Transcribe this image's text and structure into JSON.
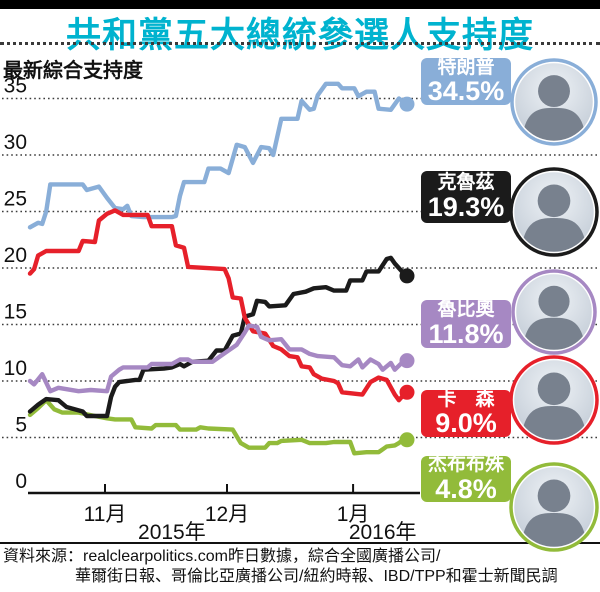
{
  "page": {
    "title": "共和黨五大總統參選人支持度",
    "title_color": "#00b3cf"
  },
  "chart": {
    "y_axis_label": "最新綜合支持度",
    "y_ticks": [
      35,
      30,
      25,
      20,
      15,
      10,
      5,
      0
    ]
  },
  "chart_data": {
    "type": "line",
    "title": "共和黨五大總統參選人支持度",
    "ylabel": "最新綜合支持度",
    "ylim": [
      0,
      35
    ],
    "grid": "horizontal-dotted",
    "legend_position": "right-cards",
    "x_unit": "days (chart spans mid-Oct 2015 to mid-Jan 2016)",
    "x_range_days": [
      0,
      93
    ],
    "x_ticks": [
      {
        "label": "11月",
        "day": 18.5
      },
      {
        "label": "12月",
        "day": 48.6
      },
      {
        "label": "1月",
        "day": 79.7
      }
    ],
    "year_labels": [
      {
        "label": "2015年",
        "day": 35
      },
      {
        "label": "2016年",
        "day": 87
      }
    ],
    "series": [
      {
        "name": "特朗普",
        "slug": "trump",
        "color": "#89aed8",
        "end_label": "34.5%",
        "end_value": 34.5,
        "points": [
          [
            0,
            23.6
          ],
          [
            2,
            24.0
          ],
          [
            3,
            23.9
          ],
          [
            4,
            25.0
          ],
          [
            5,
            27.4
          ],
          [
            13,
            27.4
          ],
          [
            14,
            26.9
          ],
          [
            17,
            27.2
          ],
          [
            19,
            26.2
          ],
          [
            21,
            25.3
          ],
          [
            23,
            25.2
          ],
          [
            24,
            25.5
          ],
          [
            25,
            24.6
          ],
          [
            28,
            24.5
          ],
          [
            35,
            24.5
          ],
          [
            36,
            24.6
          ],
          [
            37,
            26.4
          ],
          [
            38,
            27.6
          ],
          [
            43,
            27.6
          ],
          [
            44,
            28.8
          ],
          [
            47,
            28.8
          ],
          [
            49,
            28.4
          ],
          [
            51,
            30.9
          ],
          [
            53,
            30.7
          ],
          [
            55,
            29.3
          ],
          [
            57,
            30.7
          ],
          [
            59,
            30.6
          ],
          [
            60,
            30.0
          ],
          [
            62,
            33.2
          ],
          [
            66,
            33.2
          ],
          [
            67,
            34.8
          ],
          [
            69,
            34.0
          ],
          [
            70,
            34.1
          ],
          [
            71,
            35.3
          ],
          [
            73,
            36.3
          ],
          [
            76,
            36.3
          ],
          [
            77,
            35.9
          ],
          [
            80,
            35.9
          ],
          [
            81,
            35.2
          ],
          [
            83,
            35.6
          ],
          [
            85,
            35.6
          ],
          [
            86,
            34.1
          ],
          [
            89,
            34.0
          ],
          [
            91,
            35.0
          ],
          [
            93,
            34.5
          ]
        ]
      },
      {
        "name": "克魯茲",
        "slug": "cruz",
        "color": "#1b1b1b",
        "end_label": "19.3%",
        "end_value": 19.3,
        "points": [
          [
            0,
            7.3
          ],
          [
            2,
            7.9
          ],
          [
            4,
            8.4
          ],
          [
            7,
            8.3
          ],
          [
            9,
            7.7
          ],
          [
            13,
            7.3
          ],
          [
            14,
            6.9
          ],
          [
            19,
            6.9
          ],
          [
            20,
            8.6
          ],
          [
            21,
            9.5
          ],
          [
            22,
            9.9
          ],
          [
            26,
            10.1
          ],
          [
            27,
            10.1
          ],
          [
            28,
            11.0
          ],
          [
            33,
            11.1
          ],
          [
            35,
            11.2
          ],
          [
            37,
            11.5
          ],
          [
            38,
            11.3
          ],
          [
            40,
            11.7
          ],
          [
            44,
            11.8
          ],
          [
            46,
            12.7
          ],
          [
            48,
            12.7
          ],
          [
            50,
            14.0
          ],
          [
            52,
            14.2
          ],
          [
            53,
            15.7
          ],
          [
            55,
            15.9
          ],
          [
            56,
            17.1
          ],
          [
            58,
            17.0
          ],
          [
            59,
            16.6
          ],
          [
            63,
            16.7
          ],
          [
            65,
            17.7
          ],
          [
            68,
            17.9
          ],
          [
            70,
            18.2
          ],
          [
            73,
            18.3
          ],
          [
            75,
            18.0
          ],
          [
            78,
            18.0
          ],
          [
            79,
            18.9
          ],
          [
            82,
            18.9
          ],
          [
            83,
            19.7
          ],
          [
            86,
            19.7
          ],
          [
            88,
            20.8
          ],
          [
            89,
            20.9
          ],
          [
            90,
            20.4
          ],
          [
            92,
            19.6
          ],
          [
            93,
            19.3
          ]
        ]
      },
      {
        "name": "魯比奧",
        "slug": "rubio",
        "color": "#a688c3",
        "end_label": "11.8%",
        "end_value": 11.8,
        "points": [
          [
            0,
            10.0
          ],
          [
            1,
            9.7
          ],
          [
            3,
            10.6
          ],
          [
            5,
            9.1
          ],
          [
            7,
            9.4
          ],
          [
            12,
            9.1
          ],
          [
            15,
            9.2
          ],
          [
            19,
            9.1
          ],
          [
            20,
            10.4
          ],
          [
            22,
            11.0
          ],
          [
            23,
            11.2
          ],
          [
            29,
            11.2
          ],
          [
            30,
            11.5
          ],
          [
            35,
            11.5
          ],
          [
            37,
            11.9
          ],
          [
            39,
            11.9
          ],
          [
            40,
            11.7
          ],
          [
            45,
            11.7
          ],
          [
            47,
            12.2
          ],
          [
            49,
            12.7
          ],
          [
            51,
            13.2
          ],
          [
            53,
            14.3
          ],
          [
            54,
            14.9
          ],
          [
            56,
            14.8
          ],
          [
            57,
            13.9
          ],
          [
            59,
            13.6
          ],
          [
            62,
            13.7
          ],
          [
            64,
            12.8
          ],
          [
            67,
            12.8
          ],
          [
            69,
            12.4
          ],
          [
            71,
            12.2
          ],
          [
            75,
            12.1
          ],
          [
            77,
            11.4
          ],
          [
            79,
            11.3
          ],
          [
            81,
            11.9
          ],
          [
            82,
            11.2
          ],
          [
            84,
            11.9
          ],
          [
            86,
            11.5
          ],
          [
            87,
            11.0
          ],
          [
            89,
            11.6
          ],
          [
            90,
            11.0
          ],
          [
            92,
            11.7
          ],
          [
            93,
            11.8
          ]
        ]
      },
      {
        "name": "卡　森",
        "slug": "carson",
        "color": "#e6202a",
        "end_label": "9.0%",
        "end_value": 9.0,
        "points": [
          [
            0,
            19.5
          ],
          [
            1,
            19.9
          ],
          [
            2,
            21.1
          ],
          [
            4,
            21.5
          ],
          [
            12,
            21.5
          ],
          [
            13,
            22.4
          ],
          [
            16,
            22.3
          ],
          [
            17,
            24.2
          ],
          [
            19,
            24.8
          ],
          [
            21,
            25.1
          ],
          [
            23,
            24.7
          ],
          [
            29,
            24.7
          ],
          [
            30,
            23.7
          ],
          [
            35,
            23.7
          ],
          [
            36,
            22.0
          ],
          [
            38,
            21.8
          ],
          [
            39,
            20.1
          ],
          [
            48,
            19.9
          ],
          [
            49,
            19.1
          ],
          [
            50,
            17.4
          ],
          [
            52,
            17.3
          ],
          [
            53,
            15.6
          ],
          [
            55,
            14.4
          ],
          [
            58,
            14.2
          ],
          [
            60,
            13.1
          ],
          [
            62,
            12.8
          ],
          [
            64,
            12.2
          ],
          [
            66,
            12.1
          ],
          [
            67,
            11.3
          ],
          [
            69,
            11.2
          ],
          [
            70,
            10.6
          ],
          [
            72,
            10.2
          ],
          [
            75,
            10.0
          ],
          [
            76,
            9.8
          ],
          [
            77,
            9.0
          ],
          [
            82,
            8.8
          ],
          [
            84,
            9.9
          ],
          [
            86,
            10.3
          ],
          [
            88,
            10.1
          ],
          [
            90,
            8.8
          ],
          [
            91,
            8.3
          ],
          [
            92,
            8.7
          ],
          [
            93,
            9.0
          ]
        ]
      },
      {
        "name": "杰布布殊",
        "slug": "bush",
        "color": "#92bb3a",
        "end_label": "4.8%",
        "end_value": 4.8,
        "points": [
          [
            0,
            7.0
          ],
          [
            2,
            7.6
          ],
          [
            4,
            8.3
          ],
          [
            6,
            7.5
          ],
          [
            8,
            7.2
          ],
          [
            12,
            7.2
          ],
          [
            16,
            6.9
          ],
          [
            19,
            6.7
          ],
          [
            21,
            6.6
          ],
          [
            25,
            6.6
          ],
          [
            26,
            5.9
          ],
          [
            30,
            5.8
          ],
          [
            31,
            6.1
          ],
          [
            36,
            6.1
          ],
          [
            37,
            5.7
          ],
          [
            41,
            5.7
          ],
          [
            42,
            5.9
          ],
          [
            44,
            5.8
          ],
          [
            50,
            5.7
          ],
          [
            52,
            4.5
          ],
          [
            54,
            4.1
          ],
          [
            58,
            4.1
          ],
          [
            59,
            4.5
          ],
          [
            61,
            4.5
          ],
          [
            62,
            4.7
          ],
          [
            67,
            4.8
          ],
          [
            69,
            4.5
          ],
          [
            73,
            4.5
          ],
          [
            75,
            4.6
          ],
          [
            79,
            4.6
          ],
          [
            80,
            3.6
          ],
          [
            83,
            3.7
          ],
          [
            86,
            3.7
          ],
          [
            88,
            4.2
          ],
          [
            90,
            4.3
          ],
          [
            91,
            4.5
          ],
          [
            92,
            4.8
          ],
          [
            93,
            4.8
          ]
        ]
      }
    ]
  },
  "source": {
    "line1": "資料來源：realclearpolitics.com昨日數據，綜合全國廣播公司/",
    "line2": "華爾街日報、哥倫比亞廣播公司/紐約時報、IBD/TPP和霍士新聞民調"
  }
}
